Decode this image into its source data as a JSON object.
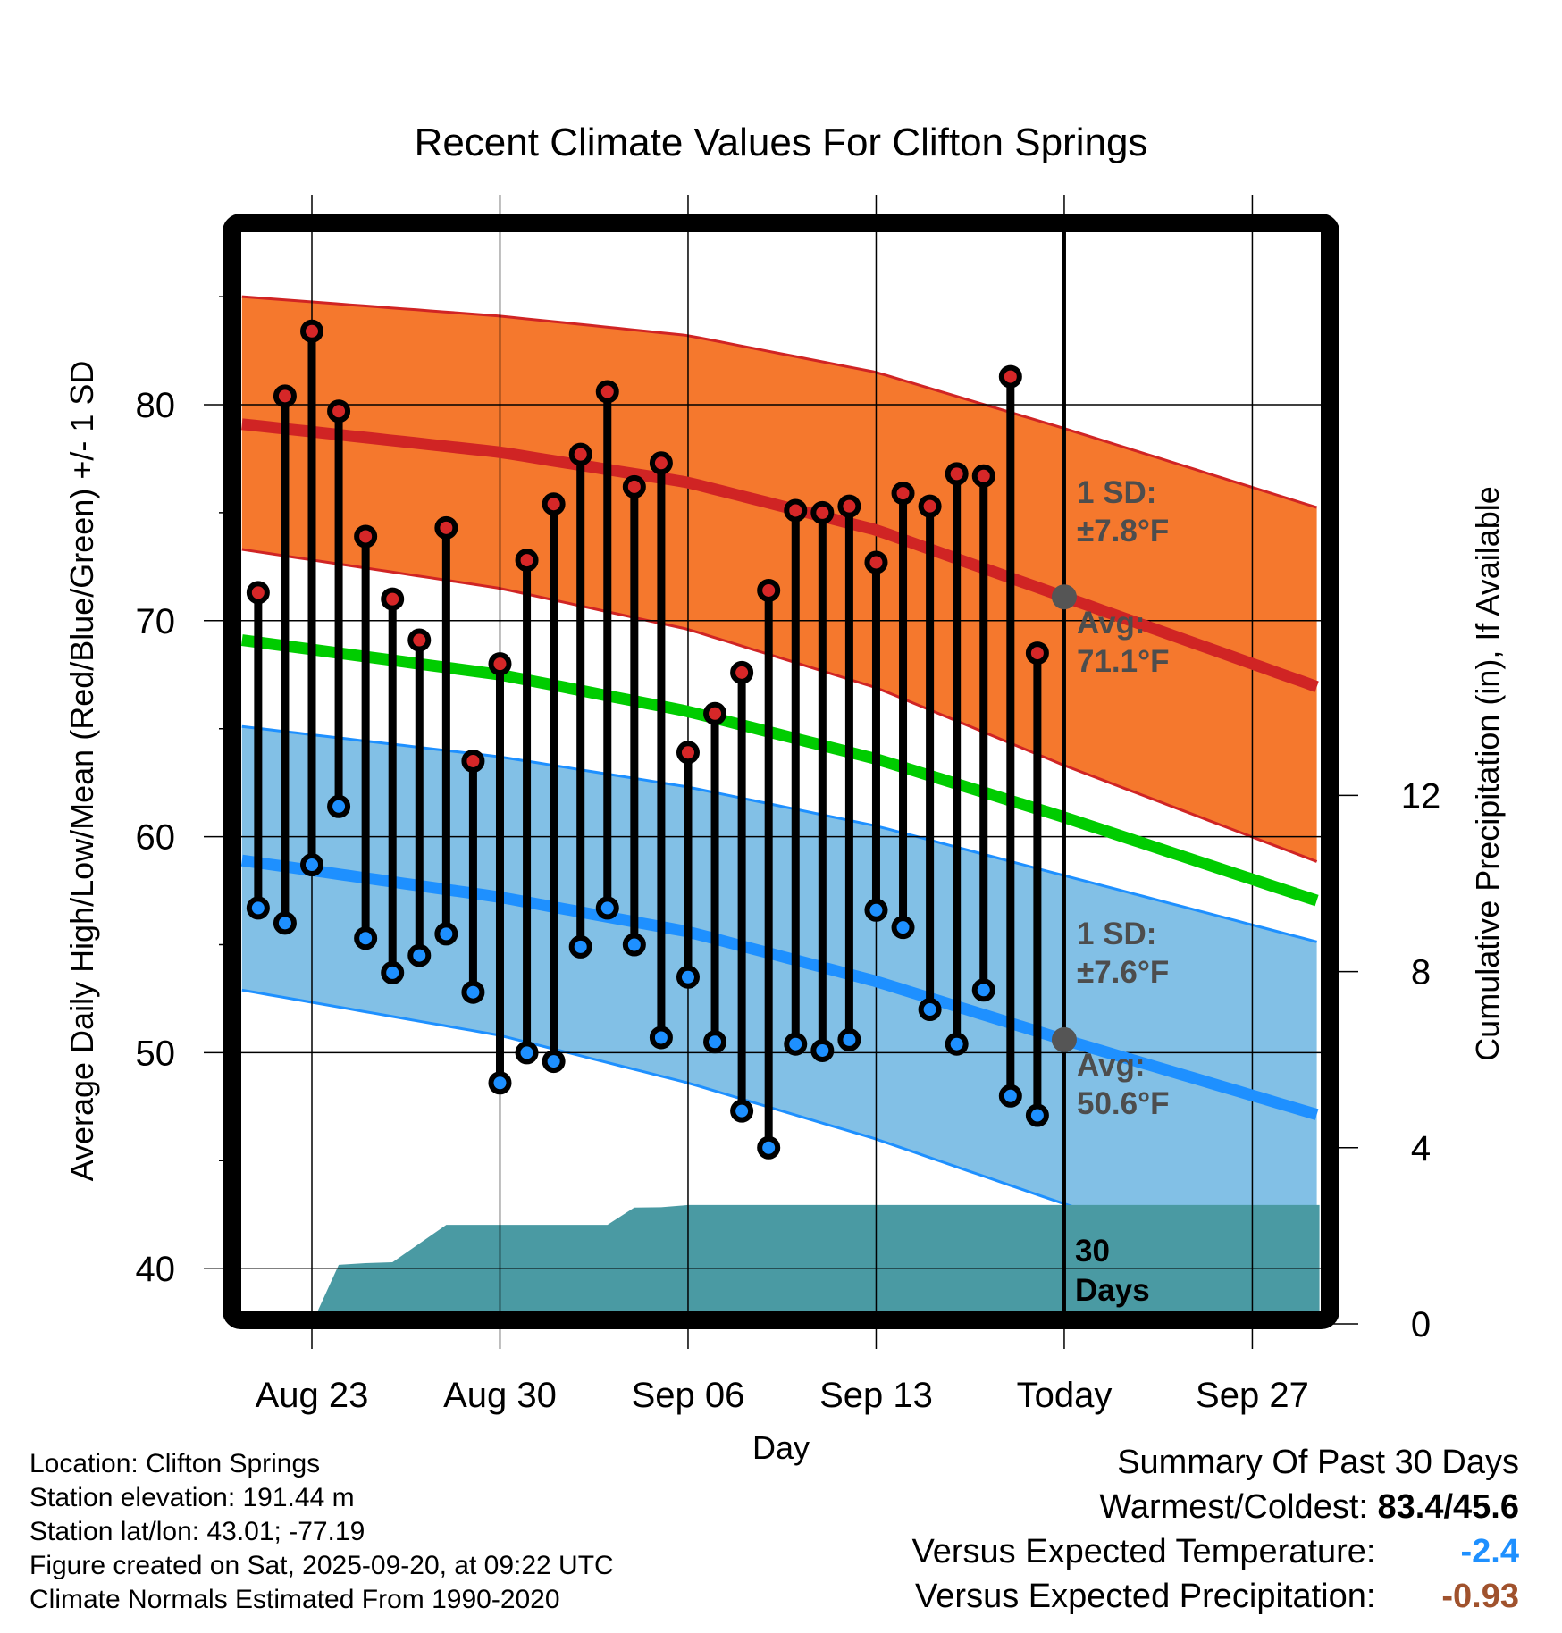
{
  "chart_data": {
    "type": "line",
    "title": "Recent Climate Values For Clifton Springs",
    "xlabel": "Day",
    "ylabel": "Average Daily High/Low/Mean (Red/Blue/Green) +/- 1 SD",
    "y2label": "Cumulative Precipitation (in), If Available",
    "ylim": [
      38,
      88
    ],
    "y2lim": [
      0,
      16
    ],
    "xlim_days_from_aug23": [
      -2.6,
      37.5
    ],
    "grid": true,
    "yticks": [
      40,
      50,
      60,
      70,
      80
    ],
    "yticks_minor": [
      45,
      55,
      65,
      75,
      85
    ],
    "y2ticks": [
      0,
      4,
      8,
      12
    ],
    "xticks": [
      {
        "label": "Aug 23",
        "day": 0
      },
      {
        "label": "Aug 30",
        "day": 7
      },
      {
        "label": "Sep 06",
        "day": 14
      },
      {
        "label": "Sep 13",
        "day": 21
      },
      {
        "label": "Today",
        "day": 28
      },
      {
        "label": "Sep 27",
        "day": 35
      }
    ],
    "dates": [
      "Aug 21",
      "Aug 22",
      "Aug 23",
      "Aug 24",
      "Aug 25",
      "Aug 26",
      "Aug 27",
      "Aug 28",
      "Aug 29",
      "Aug 30",
      "Aug 31",
      "Sep 01",
      "Sep 02",
      "Sep 03",
      "Sep 04",
      "Sep 05",
      "Sep 06",
      "Sep 07",
      "Sep 08",
      "Sep 09",
      "Sep 10",
      "Sep 11",
      "Sep 12",
      "Sep 13",
      "Sep 14",
      "Sep 15",
      "Sep 16",
      "Sep 17",
      "Sep 18",
      "Sep 19"
    ],
    "first_day_offset": -2,
    "series": [
      {
        "name": "Daily High",
        "color": "#d62728",
        "values": [
          71.3,
          80.4,
          83.4,
          79.7,
          73.9,
          71.0,
          69.1,
          74.3,
          63.5,
          68.0,
          72.8,
          75.4,
          77.7,
          80.6,
          76.2,
          77.3,
          63.9,
          65.7,
          67.6,
          71.4,
          75.1,
          75.0,
          75.3,
          72.7,
          75.9,
          75.3,
          76.8,
          76.7,
          81.3,
          68.5
        ]
      },
      {
        "name": "Daily Low",
        "color": "#1e90ff",
        "values": [
          56.7,
          56.0,
          58.7,
          61.4,
          55.3,
          53.7,
          54.5,
          55.5,
          52.8,
          48.6,
          50.0,
          49.6,
          54.9,
          56.7,
          55.0,
          50.7,
          53.5,
          50.5,
          47.3,
          45.6,
          50.4,
          50.1,
          50.6,
          56.6,
          55.8,
          52.0,
          50.4,
          52.9,
          48.0,
          47.1
        ]
      },
      {
        "name": "Cumulative Precipitation (in)",
        "color": "#4a9aa3",
        "points": [
          [
            -2.6,
            0
          ],
          [
            0,
            0
          ],
          [
            1,
            1.34
          ],
          [
            2,
            1.38
          ],
          [
            3,
            1.4
          ],
          [
            5,
            2.25
          ],
          [
            11,
            2.25
          ],
          [
            12,
            2.64
          ],
          [
            13,
            2.65
          ],
          [
            14,
            2.7
          ],
          [
            37.5,
            2.7
          ]
        ]
      }
    ],
    "normals": {
      "days": [
        -2.6,
        7,
        14,
        21,
        28,
        37.5
      ],
      "high_avg": [
        79.1,
        77.8,
        76.4,
        74.2,
        71.1,
        66.9
      ],
      "high_plus_sd": [
        85.0,
        84.1,
        83.2,
        81.5,
        78.9,
        75.2
      ],
      "high_minus_sd": [
        73.3,
        71.5,
        69.6,
        66.9,
        63.3,
        58.8
      ],
      "mean": [
        69.1,
        67.5,
        65.8,
        63.6,
        60.9,
        57.0
      ],
      "low_avg": [
        58.9,
        57.2,
        55.6,
        53.3,
        50.6,
        47.1
      ],
      "low_plus_sd": [
        65.1,
        63.7,
        62.3,
        60.5,
        58.2,
        55.1
      ],
      "low_minus_sd": [
        52.9,
        50.8,
        48.6,
        46.0,
        43.0,
        39.1
      ]
    },
    "annotations": {
      "high_sd_line1": "1 SD:",
      "high_sd_line2": "±7.8°F",
      "high_avg_line1": "Avg:",
      "high_avg_line2": "71.1°F",
      "low_sd_line1": "1 SD:",
      "low_sd_line2": "±7.6°F",
      "low_avg_line1": "Avg:",
      "low_avg_line2": "50.6°F",
      "today_high_avg": 71.1,
      "today_low_avg": 50.6,
      "days_line1": "30",
      "days_line2": "Days"
    },
    "colors": {
      "high_band": "#f5782d",
      "high_line": "#d02424",
      "mean_line": "#00cc00",
      "low_band": "#82c0e6",
      "low_line": "#1e90ff",
      "precip": "#4a9aa3",
      "marker_today": "#555555"
    }
  },
  "info": {
    "location": "Location: Clifton Springs",
    "elevation": "Station elevation: 191.44 m",
    "latlon": "Station lat/lon: 43.01; -77.19",
    "created": "Figure created on Sat, 2025-09-20, at 09:22 UTC",
    "normals": "Climate Normals Estimated From 1990-2020"
  },
  "summary": {
    "title": "Summary Of Past 30 Days",
    "warm_cold_label": "Warmest/Coldest:",
    "warm_cold_value": "83.4/45.6",
    "temp_label": "Versus Expected Temperature:",
    "temp_value": "-2.4",
    "temp_color": "#1e90ff",
    "precip_label": "Versus Expected Precipitation:",
    "precip_value": "-0.93",
    "precip_color": "#a0522d"
  }
}
